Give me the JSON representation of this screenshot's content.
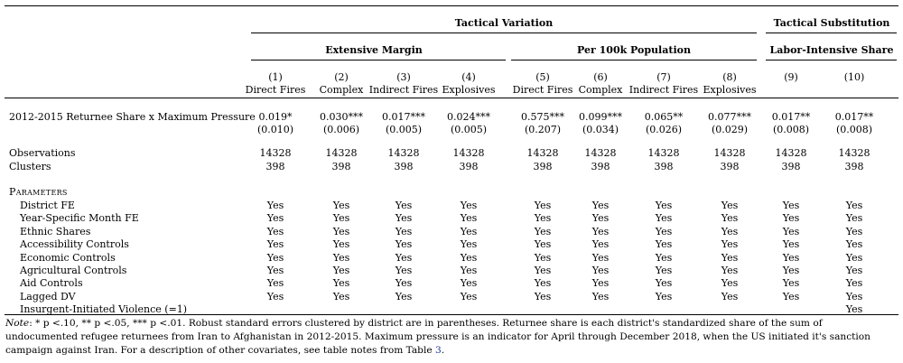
{
  "header": {
    "group_tactical_variation": "Tactical Variation",
    "group_tactical_substitution": "Tactical Substitution",
    "sub_extensive_margin": "Extensive Margin",
    "sub_per100k": "Per 100k Population",
    "sub_labor_intensive": "Labor-Intensive Share",
    "columns": [
      {
        "num": "(1)",
        "name": "Direct Fires"
      },
      {
        "num": "(2)",
        "name": "Complex"
      },
      {
        "num": "(3)",
        "name": "Indirect Fires"
      },
      {
        "num": "(4)",
        "name": "Explosives"
      },
      {
        "num": "(5)",
        "name": "Direct Fires"
      },
      {
        "num": "(6)",
        "name": "Complex"
      },
      {
        "num": "(7)",
        "name": "Indirect Fires"
      },
      {
        "num": "(8)",
        "name": "Explosives"
      },
      {
        "num": "(9)",
        "name": ""
      },
      {
        "num": "(10)",
        "name": ""
      }
    ]
  },
  "coef_row": {
    "label": "2012-2015 Returnee Share x Maximum Pressure",
    "estimates": [
      "0.019*",
      "0.030***",
      "0.017***",
      "0.024***",
      "0.575***",
      "0.099***",
      "0.065**",
      "0.077***",
      "0.017**",
      "0.017**"
    ],
    "std_errors": [
      "(0.010)",
      "(0.006)",
      "(0.005)",
      "(0.005)",
      "(0.207)",
      "(0.034)",
      "(0.026)",
      "(0.029)",
      "(0.008)",
      "(0.008)"
    ]
  },
  "stats": {
    "observations_label": "Observations",
    "observations": [
      "14328",
      "14328",
      "14328",
      "14328",
      "14328",
      "14328",
      "14328",
      "14328",
      "14328",
      "14328"
    ],
    "clusters_label": "Clusters",
    "clusters": [
      "398",
      "398",
      "398",
      "398",
      "398",
      "398",
      "398",
      "398",
      "398",
      "398"
    ]
  },
  "parameters": {
    "title": "Parameters",
    "rows": [
      {
        "label": "District FE",
        "values": [
          "Yes",
          "Yes",
          "Yes",
          "Yes",
          "Yes",
          "Yes",
          "Yes",
          "Yes",
          "Yes",
          "Yes"
        ]
      },
      {
        "label": "Year-Specific Month FE",
        "values": [
          "Yes",
          "Yes",
          "Yes",
          "Yes",
          "Yes",
          "Yes",
          "Yes",
          "Yes",
          "Yes",
          "Yes"
        ]
      },
      {
        "label": "Ethnic Shares",
        "values": [
          "Yes",
          "Yes",
          "Yes",
          "Yes",
          "Yes",
          "Yes",
          "Yes",
          "Yes",
          "Yes",
          "Yes"
        ]
      },
      {
        "label": "Accessibility Controls",
        "values": [
          "Yes",
          "Yes",
          "Yes",
          "Yes",
          "Yes",
          "Yes",
          "Yes",
          "Yes",
          "Yes",
          "Yes"
        ]
      },
      {
        "label": "Economic Controls",
        "values": [
          "Yes",
          "Yes",
          "Yes",
          "Yes",
          "Yes",
          "Yes",
          "Yes",
          "Yes",
          "Yes",
          "Yes"
        ]
      },
      {
        "label": "Agricultural Controls",
        "values": [
          "Yes",
          "Yes",
          "Yes",
          "Yes",
          "Yes",
          "Yes",
          "Yes",
          "Yes",
          "Yes",
          "Yes"
        ]
      },
      {
        "label": "Aid Controls",
        "values": [
          "Yes",
          "Yes",
          "Yes",
          "Yes",
          "Yes",
          "Yes",
          "Yes",
          "Yes",
          "Yes",
          "Yes"
        ]
      },
      {
        "label": "Lagged DV",
        "values": [
          "Yes",
          "Yes",
          "Yes",
          "Yes",
          "Yes",
          "Yes",
          "Yes",
          "Yes",
          "Yes",
          "Yes"
        ]
      },
      {
        "label": "Insurgent-Initiated Violence (=1)",
        "values": [
          "",
          "",
          "",
          "",
          "",
          "",
          "",
          "",
          "",
          "Yes"
        ]
      }
    ]
  },
  "note": {
    "label": "Note",
    "text_before_ref": ": * p <.10, ** p <.05, *** p <.01. Robust standard errors clustered by district are in parentheses. Returnee share is each district's standardized share of the sum of undocumented refugee returnees from Iran to Afghanistan in 2012-2015. Maximum pressure is an indicator for April through December 2018, when the US initiated it's sanction campaign against Iran. For a description of other covariates, see table notes from Table ",
    "ref": "3",
    "text_after_ref": "."
  }
}
